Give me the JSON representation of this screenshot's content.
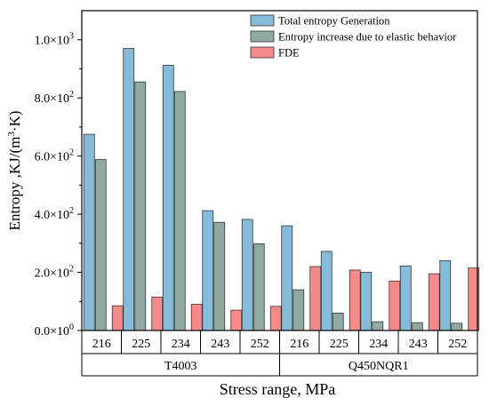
{
  "chart_data": {
    "type": "bar",
    "ylabel_main": "Entropy ,KJ/(m",
    "ylabel_sup": "3",
    "ylabel_end": "·K)",
    "xlabel": "Stress range, MPa",
    "ylim": [
      0,
      1100
    ],
    "yticks": [
      {
        "value": 0,
        "base": "0.0×10",
        "exp": "0"
      },
      {
        "value": 200,
        "base": "2.0×10",
        "exp": "2"
      },
      {
        "value": 400,
        "base": "4.0×10",
        "exp": "2"
      },
      {
        "value": 600,
        "base": "6.0×10",
        "exp": "2"
      },
      {
        "value": 800,
        "base": "8.0×10",
        "exp": "2"
      },
      {
        "value": 1000,
        "base": "1.0×10",
        "exp": "3"
      }
    ],
    "categories": [
      "216",
      "225",
      "234",
      "243",
      "252",
      "216",
      "225",
      "234",
      "243",
      "252"
    ],
    "groups": [
      {
        "label": "T4003",
        "start": 0,
        "end": 4
      },
      {
        "label": "Q450NQR1",
        "start": 5,
        "end": 9
      }
    ],
    "series": [
      {
        "name": "Total entropy Generation",
        "color": "#86bcd9",
        "values": [
          675,
          970,
          912,
          412,
          382,
          360,
          272,
          200,
          222,
          240
        ]
      },
      {
        "name": "Entropy increase due to elastic behavior",
        "color": "#90a9a3",
        "values": [
          588,
          855,
          822,
          372,
          298,
          140,
          60,
          30,
          27,
          25
        ]
      },
      {
        "name": "FDE",
        "color": "#f58a8a",
        "values": [
          85,
          115,
          90,
          70,
          83,
          220,
          208,
          170,
          195,
          215
        ]
      }
    ],
    "legend_position": "top-right"
  }
}
